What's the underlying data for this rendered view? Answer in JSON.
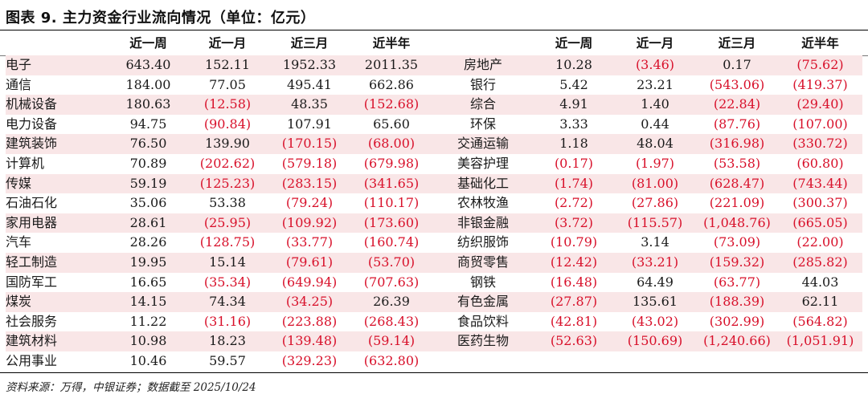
{
  "title": "图表 9. 主力资金行业流向情况（单位：亿元）",
  "headers": {
    "left": [
      "",
      "近一周",
      "近一月",
      "近三月",
      "近半年"
    ],
    "right": [
      "",
      "近一周",
      "近一月",
      "近三月",
      "近半年"
    ]
  },
  "rows": [
    {
      "left": [
        "电子",
        "643.40",
        "152.11",
        "1952.33",
        "2011.35"
      ],
      "right": [
        "房地产",
        "10.28",
        "(3.46)",
        "0.17",
        "(75.62)"
      ]
    },
    {
      "left": [
        "通信",
        "184.00",
        "77.05",
        "495.41",
        "662.86"
      ],
      "right": [
        "银行",
        "5.42",
        "23.21",
        "(543.06)",
        "(419.37)"
      ]
    },
    {
      "left": [
        "机械设备",
        "180.63",
        "(12.58)",
        "48.35",
        "(152.68)"
      ],
      "right": [
        "综合",
        "4.91",
        "1.40",
        "(22.84)",
        "(29.40)"
      ]
    },
    {
      "left": [
        "电力设备",
        "94.75",
        "(90.84)",
        "107.91",
        "65.60"
      ],
      "right": [
        "环保",
        "3.33",
        "0.44",
        "(87.76)",
        "(107.00)"
      ]
    },
    {
      "left": [
        "建筑装饰",
        "76.50",
        "139.90",
        "(170.15)",
        "(68.00)"
      ],
      "right": [
        "交通运输",
        "1.18",
        "48.04",
        "(316.98)",
        "(330.72)"
      ]
    },
    {
      "left": [
        "计算机",
        "70.89",
        "(202.62)",
        "(579.18)",
        "(679.98)"
      ],
      "right": [
        "美容护理",
        "(0.17)",
        "(1.97)",
        "(53.58)",
        "(60.80)"
      ]
    },
    {
      "left": [
        "传媒",
        "59.19",
        "(125.23)",
        "(283.15)",
        "(341.65)"
      ],
      "right": [
        "基础化工",
        "(1.74)",
        "(81.00)",
        "(628.47)",
        "(743.44)"
      ]
    },
    {
      "left": [
        "石油石化",
        "35.06",
        "53.38",
        "(79.24)",
        "(110.17)"
      ],
      "right": [
        "农林牧渔",
        "(2.72)",
        "(27.86)",
        "(221.09)",
        "(300.37)"
      ]
    },
    {
      "left": [
        "家用电器",
        "28.61",
        "(25.95)",
        "(109.92)",
        "(173.60)"
      ],
      "right": [
        "非银金融",
        "(3.72)",
        "(115.57)",
        "(1,048.76)",
        "(665.05)"
      ]
    },
    {
      "left": [
        "汽车",
        "28.26",
        "(128.75)",
        "(33.77)",
        "(160.74)"
      ],
      "right": [
        "纺织服饰",
        "(10.79)",
        "3.14",
        "(73.09)",
        "(22.00)"
      ]
    },
    {
      "left": [
        "轻工制造",
        "19.95",
        "15.14",
        "(79.61)",
        "(53.70)"
      ],
      "right": [
        "商贸零售",
        "(12.42)",
        "(33.21)",
        "(159.32)",
        "(285.82)"
      ]
    },
    {
      "left": [
        "国防军工",
        "16.65",
        "(35.34)",
        "(649.94)",
        "(707.63)"
      ],
      "right": [
        "钢铁",
        "(16.48)",
        "64.49",
        "(63.77)",
        "44.03"
      ]
    },
    {
      "left": [
        "煤炭",
        "14.15",
        "74.34",
        "(34.25)",
        "26.39"
      ],
      "right": [
        "有色金属",
        "(27.87)",
        "135.61",
        "(188.39)",
        "62.11"
      ]
    },
    {
      "left": [
        "社会服务",
        "11.22",
        "(31.16)",
        "(223.88)",
        "(268.43)"
      ],
      "right": [
        "食品饮料",
        "(42.81)",
        "(43.02)",
        "(302.99)",
        "(564.82)"
      ]
    },
    {
      "left": [
        "建筑材料",
        "10.98",
        "18.23",
        "(139.48)",
        "(59.14)"
      ],
      "right": [
        "医药生物",
        "(52.63)",
        "(150.69)",
        "(1,240.66)",
        "(1,051.91)"
      ]
    },
    {
      "left": [
        "公用事业",
        "10.46",
        "59.57",
        "(329.23)",
        "(632.80)"
      ],
      "right": [
        "",
        "",
        "",
        "",
        ""
      ]
    }
  ],
  "source": "资料来源：万得，中银证券；数据截至 2025/10/24",
  "colors": {
    "negative": "#d8102a",
    "shade": "#f9e6e7",
    "text": "#1a1a1a"
  }
}
